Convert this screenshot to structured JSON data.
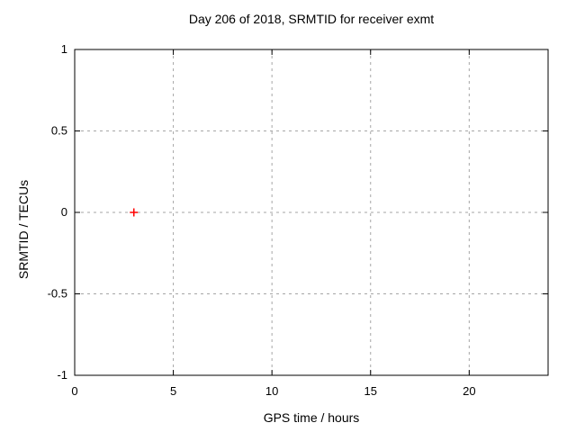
{
  "window": {
    "background": "#ffffff"
  },
  "chart_data": {
    "type": "scatter",
    "title": "Day 206 of 2018, SRMTID for receiver exmt",
    "xlabel": "GPS time / hours",
    "ylabel": "SRMTID / TECUs",
    "xlim": [
      0,
      24
    ],
    "ylim": [
      -1,
      1
    ],
    "grid": true,
    "legend": "none",
    "xticks": [
      {
        "value": 0,
        "label": "0"
      },
      {
        "value": 5,
        "label": "5"
      },
      {
        "value": 10,
        "label": "10"
      },
      {
        "value": 15,
        "label": "15"
      },
      {
        "value": 20,
        "label": "20"
      }
    ],
    "yticks": [
      {
        "value": -1,
        "label": "-1"
      },
      {
        "value": -0.5,
        "label": "-0.5"
      },
      {
        "value": 0,
        "label": "0"
      },
      {
        "value": 0.5,
        "label": "0.5"
      },
      {
        "value": 1,
        "label": "1"
      }
    ],
    "series": [
      {
        "marker": "plus",
        "color": "#ff0000",
        "points": [
          [
            3,
            0
          ]
        ]
      }
    ],
    "colors": {
      "border": "#000000",
      "grid": "#a6a6a6",
      "text": "#000000"
    }
  }
}
